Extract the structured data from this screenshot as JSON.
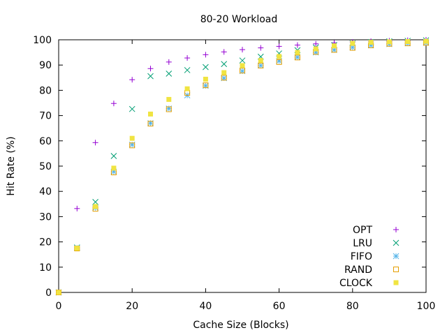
{
  "chart_data": {
    "type": "scatter",
    "title": "80-20 Workload",
    "xlabel": "Cache Size (Blocks)",
    "ylabel": "Hit Rate (%)",
    "xlim": [
      0,
      100
    ],
    "ylim": [
      0,
      100
    ],
    "xticks": [
      0,
      20,
      40,
      60,
      80,
      100
    ],
    "yticks": [
      0,
      10,
      20,
      30,
      40,
      50,
      60,
      70,
      80,
      90,
      100
    ],
    "grid": false,
    "legend_position": "bottom-right",
    "x": [
      0,
      5,
      10,
      15,
      20,
      25,
      30,
      35,
      40,
      45,
      50,
      55,
      60,
      65,
      70,
      75,
      80,
      85,
      90,
      95,
      100
    ],
    "series": [
      {
        "name": "OPT",
        "marker": "plus",
        "color": "#9400d3",
        "values": [
          0,
          33.2,
          59.3,
          74.8,
          84.2,
          88.6,
          91.2,
          92.8,
          94.1,
          95.2,
          96.1,
          96.8,
          97.4,
          97.9,
          98.4,
          98.8,
          99.1,
          99.4,
          99.6,
          99.8,
          100
        ]
      },
      {
        "name": "LRU",
        "marker": "x",
        "color": "#009e73",
        "values": [
          0,
          17.8,
          35.8,
          54.0,
          72.6,
          85.6,
          86.6,
          88.0,
          89.2,
          90.4,
          91.8,
          93.3,
          94.6,
          95.9,
          97.0,
          97.9,
          98.6,
          99.1,
          99.4,
          99.6,
          99.8
        ]
      },
      {
        "name": "FIFO",
        "marker": "star",
        "color": "#56b4e9",
        "values": [
          0,
          17.6,
          33.5,
          47.8,
          58.5,
          67.0,
          72.8,
          78.0,
          81.8,
          84.8,
          87.6,
          89.8,
          91.6,
          93.1,
          95.0,
          96.0,
          97.0,
          97.8,
          98.3,
          98.6,
          98.8
        ]
      },
      {
        "name": "RAND",
        "marker": "square-open",
        "color": "#e69f00",
        "values": [
          0,
          17.4,
          33.1,
          47.5,
          58.2,
          66.8,
          72.5,
          79.0,
          82.0,
          85.0,
          87.8,
          89.8,
          91.2,
          93.0,
          95.2,
          96.0,
          96.8,
          97.8,
          98.4,
          98.6,
          98.8
        ]
      },
      {
        "name": "CLOCK",
        "marker": "square-filled",
        "color": "#f0e442",
        "values": [
          0,
          17.5,
          34.0,
          49.2,
          61.0,
          70.6,
          76.4,
          80.6,
          84.4,
          87.0,
          89.8,
          91.8,
          93.4,
          95.0,
          96.4,
          97.6,
          98.6,
          99.0,
          99.2,
          99.3,
          99.4
        ]
      }
    ]
  }
}
